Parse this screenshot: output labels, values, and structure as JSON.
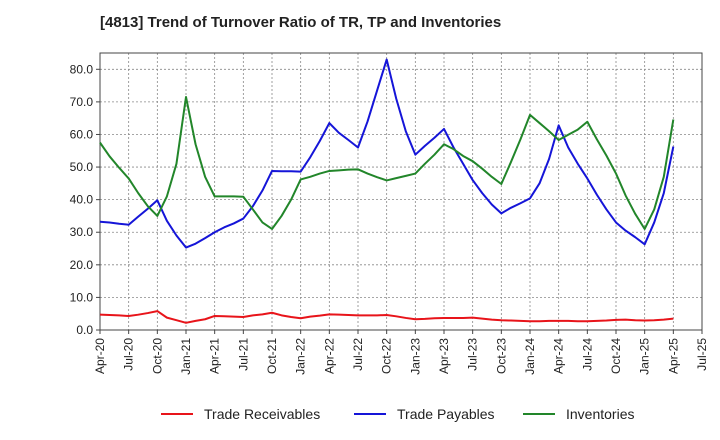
{
  "chart_data": {
    "type": "line",
    "title": "[4813]  Trend of Turnover Ratio of TR, TP and Inventories",
    "xlabel": "",
    "ylabel": "",
    "ylim": [
      0,
      85
    ],
    "yticks": [
      "0.0",
      "10.0",
      "20.0",
      "30.0",
      "40.0",
      "50.0",
      "60.0",
      "70.0",
      "80.0"
    ],
    "xticks": [
      "Apr-20",
      "Jul-20",
      "Oct-20",
      "Jan-21",
      "Apr-21",
      "Jul-21",
      "Oct-21",
      "Jan-22",
      "Apr-22",
      "Jul-22",
      "Oct-22",
      "Jan-23",
      "Apr-23",
      "Jul-23",
      "Oct-23",
      "Jan-24",
      "Apr-24",
      "Jul-24",
      "Oct-24",
      "Jan-25",
      "Apr-25",
      "Jul-25"
    ],
    "x": [
      "2020-04",
      "2020-05",
      "2020-06",
      "2020-07",
      "2020-08",
      "2020-09",
      "2020-10",
      "2020-11",
      "2020-12",
      "2021-01",
      "2021-02",
      "2021-03",
      "2021-04",
      "2021-05",
      "2021-06",
      "2021-07",
      "2021-08",
      "2021-09",
      "2021-10",
      "2021-11",
      "2021-12",
      "2022-01",
      "2022-02",
      "2022-03",
      "2022-04",
      "2022-05",
      "2022-06",
      "2022-07",
      "2022-08",
      "2022-09",
      "2022-10",
      "2022-11",
      "2022-12",
      "2023-01",
      "2023-02",
      "2023-03",
      "2023-04",
      "2023-05",
      "2023-06",
      "2023-07",
      "2023-08",
      "2023-09",
      "2023-10",
      "2023-11",
      "2023-12",
      "2024-01",
      "2024-02",
      "2024-03",
      "2024-04",
      "2024-05",
      "2024-06",
      "2024-07",
      "2024-08",
      "2024-09",
      "2024-10",
      "2024-11",
      "2024-12",
      "2025-01",
      "2025-02",
      "2025-03",
      "2025-04"
    ],
    "grid": true,
    "legend_position": "bottom",
    "series": [
      {
        "name": "Trade Receivables",
        "color": "#e8141a",
        "values": [
          4.7,
          4.6,
          4.5,
          4.3,
          4.7,
          5.2,
          5.8,
          3.8,
          3.0,
          2.2,
          2.8,
          3.3,
          4.3,
          4.2,
          4.1,
          4.0,
          4.5,
          4.8,
          5.3,
          4.5,
          4.0,
          3.6,
          4.1,
          4.4,
          4.8,
          4.7,
          4.6,
          4.5,
          4.5,
          4.5,
          4.6,
          4.2,
          3.7,
          3.3,
          3.4,
          3.6,
          3.7,
          3.7,
          3.7,
          3.8,
          3.5,
          3.2,
          3.0,
          2.9,
          2.8,
          2.7,
          2.7,
          2.8,
          2.8,
          2.8,
          2.7,
          2.7,
          2.8,
          2.9,
          3.1,
          3.2,
          3.0,
          2.9,
          3.0,
          3.2,
          3.5
        ]
      },
      {
        "name": "Trade Payables",
        "color": "#1515d8",
        "values": [
          33.2,
          33.0,
          32.6,
          32.3,
          34.8,
          37.2,
          39.8,
          33.5,
          29.0,
          25.3,
          26.5,
          28.2,
          30.0,
          31.5,
          32.7,
          34.2,
          38.0,
          42.8,
          48.8,
          48.7,
          48.7,
          48.6,
          53.0,
          58.0,
          63.5,
          60.5,
          58.3,
          56.0,
          64.0,
          73.5,
          83.0,
          71.0,
          61.0,
          53.8,
          56.5,
          59.0,
          61.7,
          56.0,
          51.0,
          46.0,
          42.0,
          38.5,
          35.8,
          37.5,
          38.9,
          40.4,
          45.0,
          52.5,
          62.8,
          56.0,
          51.0,
          46.5,
          41.5,
          37.0,
          33.0,
          30.5,
          28.5,
          26.3,
          33.0,
          42.0,
          56.3
        ]
      },
      {
        "name": "Inventories",
        "color": "#22862a",
        "values": [
          57.5,
          53.3,
          49.8,
          46.5,
          42.0,
          38.0,
          35.0,
          41.0,
          51.0,
          71.5,
          57.0,
          47.0,
          41.0,
          41.0,
          41.0,
          40.9,
          37.0,
          33.0,
          31.0,
          35.0,
          40.0,
          46.2,
          47.0,
          48.0,
          48.8,
          49.0,
          49.2,
          49.3,
          48.0,
          46.9,
          45.9,
          46.6,
          47.3,
          48.0,
          51.0,
          53.8,
          57.0,
          55.5,
          53.4,
          51.8,
          49.5,
          47.0,
          44.8,
          51.5,
          58.5,
          66.0,
          63.5,
          61.0,
          58.3,
          59.9,
          61.5,
          63.9,
          58.5,
          53.5,
          48.0,
          41.3,
          35.7,
          31.0,
          37.0,
          47.0,
          64.6
        ]
      }
    ]
  }
}
